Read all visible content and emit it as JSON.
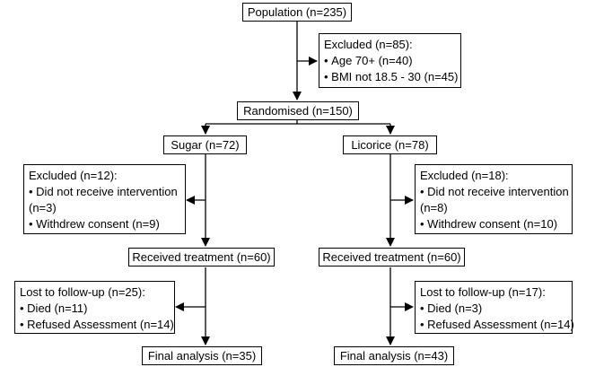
{
  "population": "Population (n=235)",
  "excluded_initial": {
    "title": "Excluded (n=85):",
    "items": [
      "Age 70+ (n=40)",
      "BMI not 18.5 - 30 (n=45)"
    ]
  },
  "randomised": "Randomised (n=150)",
  "arms": [
    {
      "group": "Sugar (n=72)",
      "excluded": {
        "title": "Excluded (n=12):",
        "items": [
          "Did not receive intervention",
          "(n=3)",
          "Withdrew consent (n=9)"
        ]
      },
      "received": "Received treatment (n=60)",
      "lost": {
        "title": "Lost to follow-up (n=25):",
        "items": [
          "Died (n=11)",
          "Refused Assessment (n=14)"
        ]
      },
      "final": "Final analysis (n=35)"
    },
    {
      "group": "Licorice (n=78)",
      "excluded": {
        "title": "Excluded (n=18):",
        "items": [
          "Did not receive intervention",
          "(n=8)",
          "Withdrew consent (n=10)"
        ]
      },
      "received": "Received treatment (n=60)",
      "lost": {
        "title": "Lost to follow-up (n=17):",
        "items": [
          "Died (n=3)",
          "Refused Assessment (n=14)"
        ]
      },
      "final": "Final analysis (n=43)"
    }
  ]
}
